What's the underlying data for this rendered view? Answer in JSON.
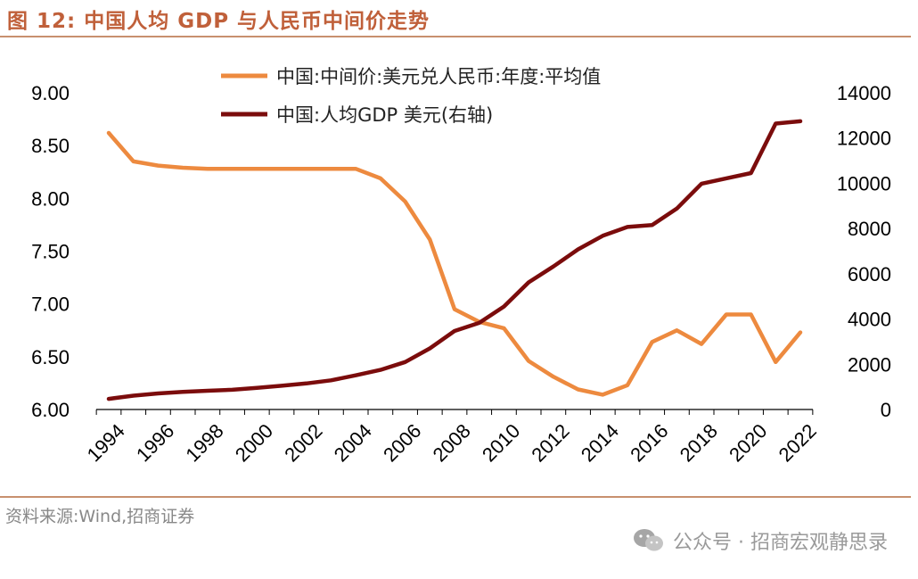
{
  "figure": {
    "title": "图 12:  中国人均 GDP 与人民币中间价走势",
    "source": "资料来源:Wind,招商证券",
    "watermark": "公众号 · 招商宏观静思录",
    "watermark_icon": "wechat-icon"
  },
  "colors": {
    "title": "#c0603a",
    "rule": "#c8906e",
    "series_rate": "#ed8a3f",
    "series_gdp": "#7b0c0c",
    "axis": "#000000"
  },
  "chart_data": {
    "type": "line",
    "title": "",
    "xlabel": "",
    "ylabel": "",
    "y2label": "",
    "x": [
      1994,
      1995,
      1996,
      1997,
      1998,
      1999,
      2000,
      2001,
      2002,
      2003,
      2004,
      2005,
      2006,
      2007,
      2008,
      2009,
      2010,
      2011,
      2012,
      2013,
      2014,
      2015,
      2016,
      2017,
      2018,
      2019,
      2020,
      2021,
      2022
    ],
    "x_ticks": [
      "1994",
      "1996",
      "1998",
      "2000",
      "2002",
      "2004",
      "2006",
      "2008",
      "2010",
      "2012",
      "2014",
      "2016",
      "2018",
      "2020",
      "2022"
    ],
    "y_ticks": [
      "6.00",
      "6.50",
      "7.00",
      "7.50",
      "8.00",
      "8.50",
      "9.00"
    ],
    "y2_ticks": [
      "0",
      "2000",
      "4000",
      "6000",
      "8000",
      "10000",
      "12000",
      "14000"
    ],
    "ylim": [
      6.0,
      9.0
    ],
    "y2lim": [
      0,
      14000
    ],
    "legend_position": "top-center",
    "series": [
      {
        "name": "中国:中间价:美元兑人民币:年度:平均值",
        "axis": "left",
        "values": [
          8.62,
          8.35,
          8.31,
          8.29,
          8.28,
          8.28,
          8.28,
          8.28,
          8.28,
          8.28,
          8.28,
          8.19,
          7.97,
          7.61,
          6.95,
          6.83,
          6.77,
          6.46,
          6.31,
          6.19,
          6.14,
          6.23,
          6.64,
          6.75,
          6.62,
          6.9,
          6.9,
          6.45,
          6.73
        ]
      },
      {
        "name": "中国:人均GDP 美元(右轴)",
        "axis": "right",
        "values": [
          470,
          610,
          710,
          780,
          830,
          870,
          960,
          1050,
          1150,
          1290,
          1510,
          1750,
          2100,
          2700,
          3470,
          3830,
          4550,
          5620,
          6320,
          7080,
          7680,
          8070,
          8150,
          8880,
          9980,
          10220,
          10450,
          12640,
          12740
        ]
      }
    ]
  }
}
